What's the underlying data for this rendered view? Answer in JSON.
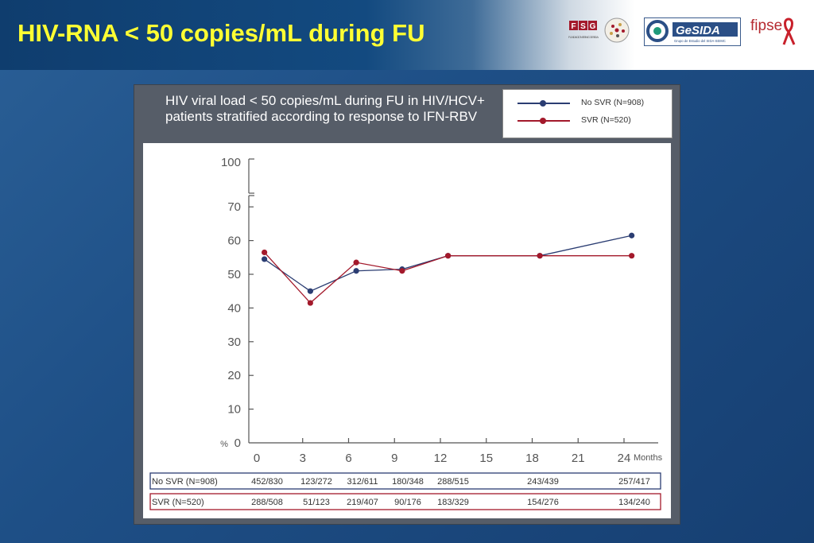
{
  "slide": {
    "title": "HIV-RNA < 50 copies/mL during FU",
    "logos": {
      "fsg": {
        "letters": [
          "F",
          "S",
          "G"
        ],
        "subtitle": "FUNDACION SEIMC GESIDA"
      },
      "gesida": {
        "name": "GeSIDA",
        "subtitle": "Grupo de Estudio del SIDA-SEIMC"
      },
      "fipse": {
        "name": "fipse"
      }
    }
  },
  "colors": {
    "no_svr": "#2b3d72",
    "svr": "#a3192b",
    "title": "#ffff33"
  },
  "chart_data": {
    "type": "line",
    "title": "HIV viral load < 50 copies/mL during FU in HIV/HCV+ patients stratified according to response to IFN-RBV",
    "xlabel": "Months",
    "ylabel": "%",
    "x_ticks": [
      "0",
      "3",
      "6",
      "9",
      "12",
      "15",
      "18",
      "21",
      "24"
    ],
    "y_ticks": [
      "0",
      "10",
      "20",
      "30",
      "40",
      "50",
      "60",
      "70",
      "100"
    ],
    "ylim": [
      0,
      100
    ],
    "xlim": [
      0,
      24
    ],
    "axis_break": "between 70 and 100",
    "legend_position": "top-right",
    "series": [
      {
        "name": "No SVR (N=908)",
        "x": [
          1,
          4,
          7,
          10,
          13,
          19,
          25
        ],
        "y": [
          54.5,
          45,
          51,
          51.5,
          55.5,
          55.5,
          61.5
        ]
      },
      {
        "name": "SVR (N=520)",
        "x": [
          1,
          4,
          7,
          10,
          13,
          19,
          25
        ],
        "y": [
          56.5,
          41.5,
          53.5,
          51,
          55.5,
          55.5,
          55.5
        ]
      }
    ],
    "table": [
      {
        "label": "No SVR (N=908)",
        "cells": [
          "452/830",
          "123/272",
          "312/611",
          "180/348",
          "288/515",
          "243/439",
          "257/417"
        ]
      },
      {
        "label": "SVR (N=520)",
        "cells": [
          "288/508",
          "51/123",
          "219/407",
          "90/176",
          "183/329",
          "154/276",
          "134/240"
        ]
      }
    ]
  }
}
